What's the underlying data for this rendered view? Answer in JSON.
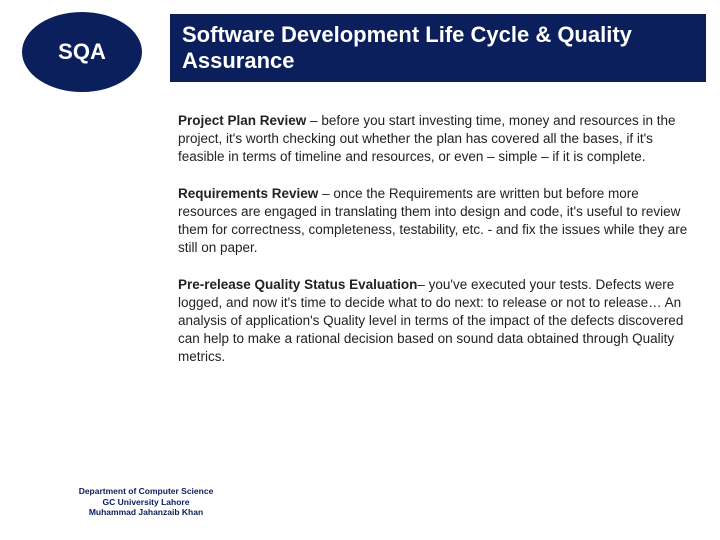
{
  "badge": {
    "label": "SQA"
  },
  "title": "Software Development Life Cycle & Quality Assurance",
  "sections": [
    {
      "heading": "Project Plan Review",
      "body": " – before you start investing time, money and resources in the project, it's worth checking out whether the plan has covered all the bases, if it's feasible in terms of timeline and resources, or even – simple – if it is complete."
    },
    {
      "heading": "Requirements Review",
      "body": " – once the Requirements are written but before more resources are engaged in translating them into design and code, it's useful to review them for correctness, completeness, testability, etc. - and fix the issues while they are still on paper."
    },
    {
      "heading": "Pre-release Quality Status Evaluation",
      "body": "– you've executed your tests. Defects were logged, and now it's time to decide what to do next: to release or not to release… An analysis of application's Quality level in terms of the impact of the defects discovered can help to make a rational decision based on sound data obtained through Quality metrics."
    }
  ],
  "footer": {
    "line1": "Department of Computer Science",
    "line2": "GC University Lahore",
    "line3": "Muhammad Jahanzaib Khan"
  },
  "colors": {
    "primary": "#0a1f5c",
    "background": "#ffffff",
    "text": "#222222"
  }
}
